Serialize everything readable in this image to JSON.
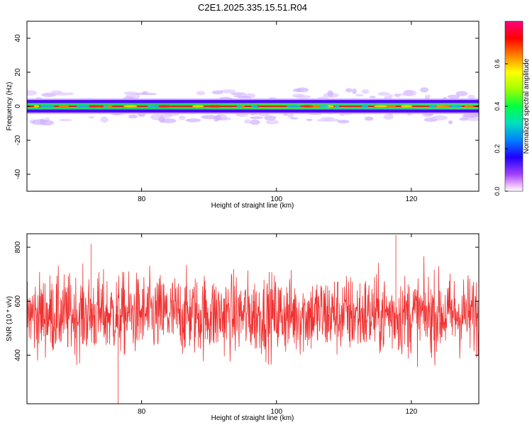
{
  "title": "C2E1.2025.335.15.51.R04",
  "colors": {
    "snr_line": "#f03030",
    "band_core": "#e02020"
  },
  "chart_data": [
    {
      "type": "heatmap",
      "title": "",
      "xlabel": "Height of straight line (km)",
      "ylabel": "Frequency (Hz)",
      "xlim": [
        63,
        130
      ],
      "ylim": [
        -50,
        50
      ],
      "xticks": [
        80,
        100,
        120
      ],
      "yticks": [
        -40,
        -20,
        0,
        20,
        40
      ],
      "band_center_hz": 0,
      "band_core_halfwidth_hz": 1.5,
      "band_outer_halfwidth_hz": 4.5,
      "colorbar": {
        "label": "Normalized spectral amplitude",
        "range": [
          0.0,
          0.8
        ],
        "ticks": [
          0.0,
          0.2,
          0.4,
          0.6
        ],
        "colormap": [
          "#e000e0",
          "#6000ff",
          "#0000ff",
          "#00aaff",
          "#00ffaa",
          "#00ff00",
          "#aaff00",
          "#ffff00",
          "#ff8000",
          "#ff0000",
          "#ff00a0"
        ]
      }
    },
    {
      "type": "line",
      "title": "",
      "xlabel": "Height of straight line (km)",
      "ylabel": "SNR (10 * v/v)",
      "xlim": [
        63,
        130
      ],
      "ylim": [
        220,
        850
      ],
      "xticks": [
        80,
        100,
        120
      ],
      "yticks": [
        400,
        600,
        800
      ],
      "series": [
        {
          "x_range": [
            63,
            130
          ],
          "mean": 550,
          "spread": 75,
          "min": 222,
          "max": 845,
          "n_points": 1400
        }
      ]
    }
  ]
}
